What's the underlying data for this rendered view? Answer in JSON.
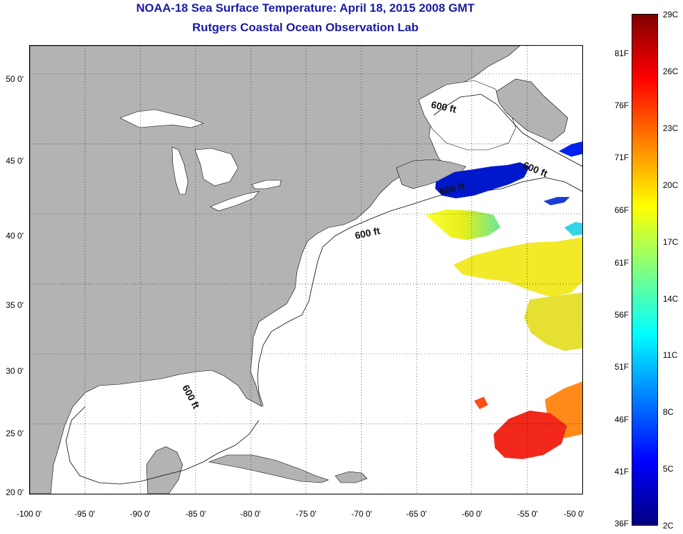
{
  "title": {
    "line1": "NOAA-18 Sea Surface Temperature:  April 18, 2015 2008 GMT",
    "line2": "Rutgers Coastal Ocean Observation Lab"
  },
  "map": {
    "lon_range": [
      -100,
      -50
    ],
    "lat_range": [
      20,
      52
    ],
    "lat_ticks": [
      {
        "value": 50,
        "label": "50 0'"
      },
      {
        "value": 45,
        "label": "45 0'"
      },
      {
        "value": 40,
        "label": "40 0'"
      },
      {
        "value": 35,
        "label": "35 0'"
      },
      {
        "value": 30,
        "label": "30 0'"
      },
      {
        "value": 25,
        "label": "25 0'"
      },
      {
        "value": 20,
        "label": "20 0'"
      }
    ],
    "lon_ticks": [
      {
        "value": -100,
        "label": "-100 0'"
      },
      {
        "value": -95,
        "label": "-95 0'"
      },
      {
        "value": -90,
        "label": "-90 0'"
      },
      {
        "value": -85,
        "label": "-85 0'"
      },
      {
        "value": -80,
        "label": "-80 0'"
      },
      {
        "value": -75,
        "label": "-75 0'"
      },
      {
        "value": -70,
        "label": "-70 0'"
      },
      {
        "value": -65,
        "label": "-65 0'"
      },
      {
        "value": -60,
        "label": "-60 0'"
      },
      {
        "value": -55,
        "label": "-55 0'"
      },
      {
        "value": -50,
        "label": "-50 0'"
      }
    ],
    "grid": "dotted",
    "land_color": "#b3b3b3",
    "ocean_color": "#ffffff",
    "contour_labels": [
      "600 ft",
      "600 ft",
      "600 ft",
      "600 ft",
      "600 ft"
    ]
  },
  "colorbar": {
    "fahrenheit_labels": [
      "81F",
      "76F",
      "71F",
      "66F",
      "61F",
      "56F",
      "51F",
      "46F",
      "41F",
      "36F"
    ],
    "celsius_labels": [
      "29C",
      "26C",
      "23C",
      "20C",
      "17C",
      "14C",
      "11C",
      "8C",
      "5C",
      "2C"
    ],
    "range_c": [
      2,
      29
    ],
    "colors": [
      "#800000",
      "#ff0000",
      "#ff8000",
      "#ffff00",
      "#80ff80",
      "#00ffff",
      "#0080ff",
      "#0000ff",
      "#000080"
    ]
  }
}
